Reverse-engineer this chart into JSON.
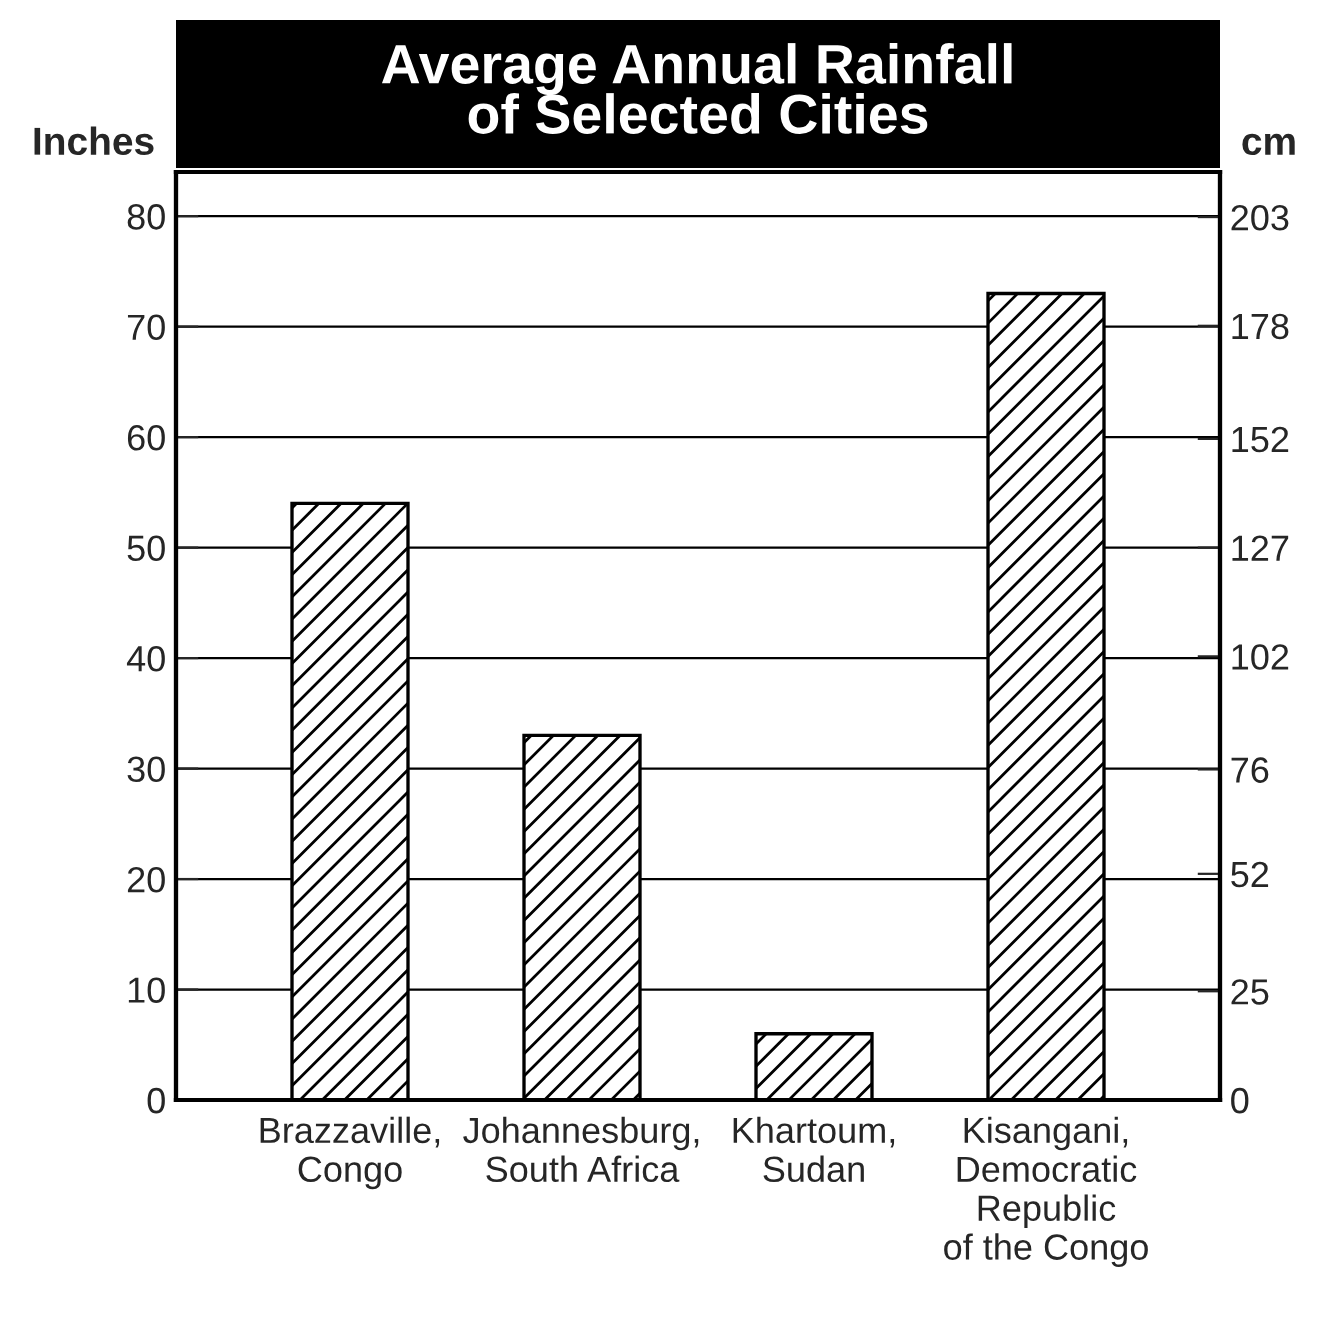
{
  "chart_data": {
    "type": "bar",
    "title": "Average Annual Rainfall\nof Selected Cities",
    "ylabel": "Inches",
    "y2label": "cm",
    "categories": [
      "Brazzaville,\nCongo",
      "Johannesburg,\nSouth Africa",
      "Khartoum,\nSudan",
      "Kisangani,\nDemocratic\nRepublic\nof the Congo"
    ],
    "values": [
      54,
      33,
      6,
      73
    ],
    "color": "#000000",
    "ylim": [
      0,
      84
    ],
    "yticks": [
      0,
      10,
      20,
      30,
      40,
      50,
      60,
      70,
      80
    ],
    "y2lim": [
      0,
      213.36
    ],
    "y2ticks": [
      0,
      25,
      52,
      76,
      102,
      127,
      152,
      178,
      203
    ],
    "grid": "y"
  }
}
